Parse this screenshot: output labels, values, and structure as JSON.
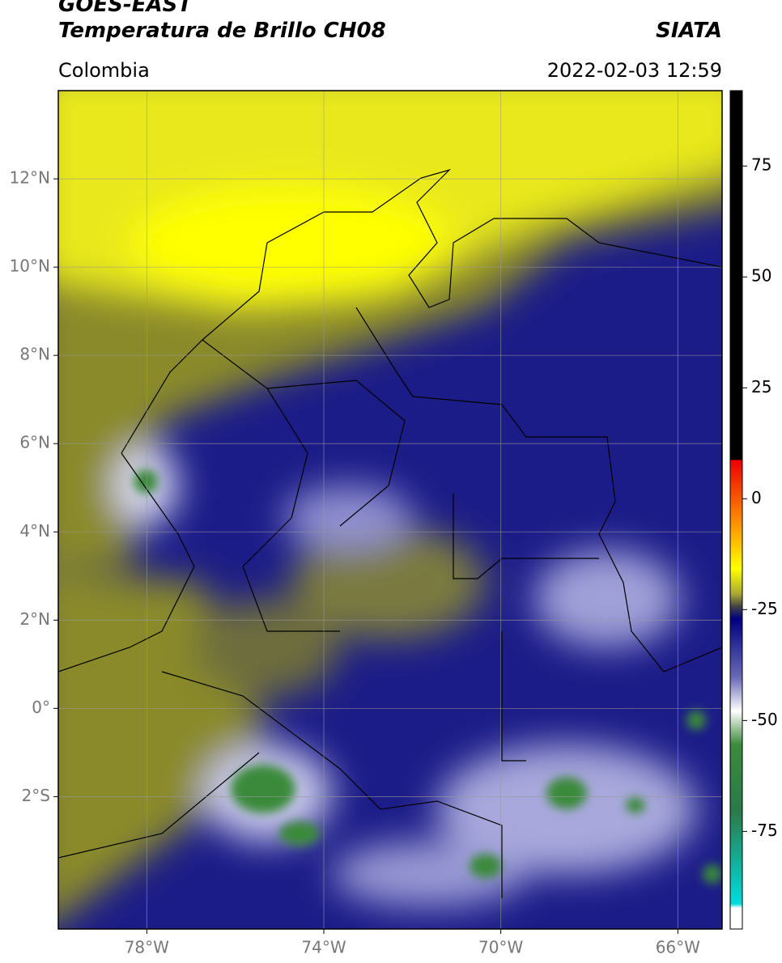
{
  "header": {
    "title": "GOES-EAST",
    "subtitle": "Temperatura de Brillo CH08",
    "source": "SIATA",
    "region": "Colombia",
    "timestamp": "2022-02-03 12:59"
  },
  "map": {
    "lonlim": [
      -80,
      -65
    ],
    "latlim": [
      -5,
      14
    ],
    "grid": true,
    "lonticks": [
      {
        "value": -78,
        "label": "78°W"
      },
      {
        "value": -74,
        "label": "74°W"
      },
      {
        "value": -70,
        "label": "70°W"
      },
      {
        "value": -66,
        "label": "66°W"
      }
    ],
    "latticks": [
      {
        "value": 12,
        "label": "12°N"
      },
      {
        "value": 10,
        "label": "10°N"
      },
      {
        "value": 8,
        "label": "8°N"
      },
      {
        "value": 6,
        "label": "6°N"
      },
      {
        "value": 4,
        "label": "4°N"
      },
      {
        "value": 2,
        "label": "2°N"
      },
      {
        "value": 0,
        "label": "0°"
      },
      {
        "value": -2,
        "label": "2°S"
      }
    ]
  },
  "colorbar": {
    "lim": [
      -97,
      92
    ],
    "ticks": [
      75,
      50,
      25,
      0,
      -25,
      -50,
      -75
    ]
  }
}
